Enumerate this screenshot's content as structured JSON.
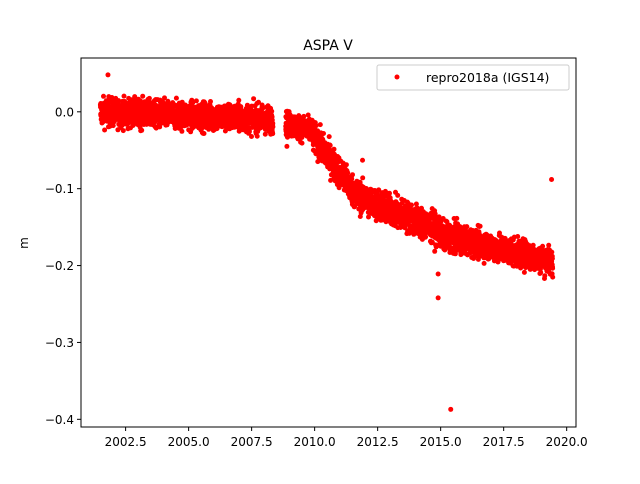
{
  "chart_data": {
    "type": "scatter",
    "title": "ASPA V",
    "xlabel": "",
    "ylabel": "m",
    "xlim": [
      2000.73,
      2020.37
    ],
    "ylim": [
      -0.41,
      0.07
    ],
    "xticks": [
      2002.5,
      2005.0,
      2007.5,
      2010.0,
      2012.5,
      2015.0,
      2017.5,
      2020.0
    ],
    "xtick_labels": [
      "2002.5",
      "2005.0",
      "2007.5",
      "2010.0",
      "2012.5",
      "2015.0",
      "2017.5",
      "2020.0"
    ],
    "yticks": [
      0.0,
      -0.1,
      -0.2,
      -0.3,
      -0.4
    ],
    "ytick_labels": [
      "0.0",
      "−0.1",
      "−0.2",
      "−0.3",
      "−0.4"
    ],
    "grid": false,
    "legend": {
      "position": "top-right",
      "entries": [
        "repro2018a (IGS14)"
      ]
    },
    "series": [
      {
        "name": "repro2018a (IGS14)",
        "color": "#ff0000",
        "marker": "circle",
        "trend_segments": [
          {
            "x_start": 2001.5,
            "x_end": 2008.35,
            "y_start": 0.0,
            "y_end": -0.01,
            "noise_sd": 0.009
          },
          {
            "x_start": 2008.85,
            "x_end": 2009.9,
            "y_start": -0.015,
            "y_end": -0.025,
            "noise_sd": 0.008
          },
          {
            "x_start": 2009.9,
            "x_end": 2011.7,
            "y_start": -0.03,
            "y_end": -0.11,
            "noise_sd": 0.01
          },
          {
            "x_start": 2011.7,
            "x_end": 2015.0,
            "y_start": -0.11,
            "y_end": -0.155,
            "noise_sd": 0.01
          },
          {
            "x_start": 2015.0,
            "x_end": 2019.45,
            "y_start": -0.16,
            "y_end": -0.195,
            "noise_sd": 0.009
          }
        ],
        "points": [
          {
            "x": 2001.8,
            "y": 0.048
          },
          {
            "x": 2008.9,
            "y": -0.045
          },
          {
            "x": 2011.9,
            "y": -0.063
          },
          {
            "x": 2014.9,
            "y": -0.211
          },
          {
            "x": 2014.9,
            "y": -0.242
          },
          {
            "x": 2015.4,
            "y": -0.387
          },
          {
            "x": 2019.4,
            "y": -0.088
          }
        ]
      }
    ]
  }
}
